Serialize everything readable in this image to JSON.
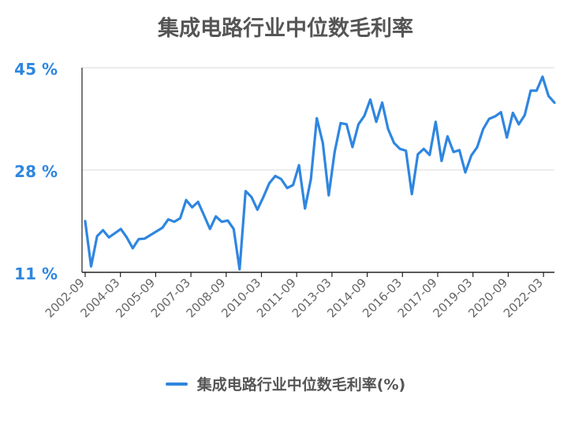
{
  "chart_data": {
    "type": "line",
    "title": "集成电路行业中位数毛利率",
    "xlabel": "",
    "ylabel": "",
    "ylim": [
      11,
      45
    ],
    "yticks": [
      "11 %",
      "28 %",
      "45 %"
    ],
    "ytick_values": [
      11,
      28,
      45
    ],
    "xtick_labels": [
      "2002-09",
      "2004-03",
      "2005-09",
      "2007-03",
      "2008-09",
      "2010-03",
      "2011-09",
      "2013-03",
      "2014-09",
      "2016-03",
      "2017-09",
      "2019-03",
      "2020-09",
      "2022-03"
    ],
    "grid": true,
    "legend_position": "bottom",
    "colors": {
      "series": "#2f86e0",
      "axis_tick": "#2f86e0",
      "title": "#555555",
      "grid": "#e0e0e0"
    },
    "series": [
      {
        "name": "集成电路行业中位数毛利率(%)",
        "values": [
          19.5,
          12.0,
          17.0,
          18.0,
          16.8,
          17.5,
          18.2,
          16.8,
          15.0,
          16.5,
          16.6,
          17.2,
          17.8,
          18.4,
          19.8,
          19.4,
          20.0,
          23.0,
          21.8,
          22.7,
          20.5,
          18.2,
          20.3,
          19.4,
          19.6,
          18.2,
          11.5,
          24.5,
          23.5,
          21.4,
          23.5,
          25.8,
          27.0,
          26.5,
          25.0,
          25.5,
          28.8,
          21.6,
          26.5,
          36.6,
          32.5,
          23.8,
          31.0,
          35.8,
          35.6,
          31.8,
          35.6,
          37.0,
          39.7,
          36.0,
          39.2,
          34.8,
          32.5,
          31.5,
          31.2,
          24.0,
          30.6,
          31.5,
          30.5,
          36.0,
          29.5,
          33.6,
          31.0,
          31.3,
          27.6,
          30.4,
          31.8,
          34.8,
          36.5,
          36.9,
          37.6,
          33.4,
          37.5,
          35.6,
          37.1,
          41.2,
          41.2,
          43.5,
          40.3,
          39.2
        ]
      }
    ]
  }
}
